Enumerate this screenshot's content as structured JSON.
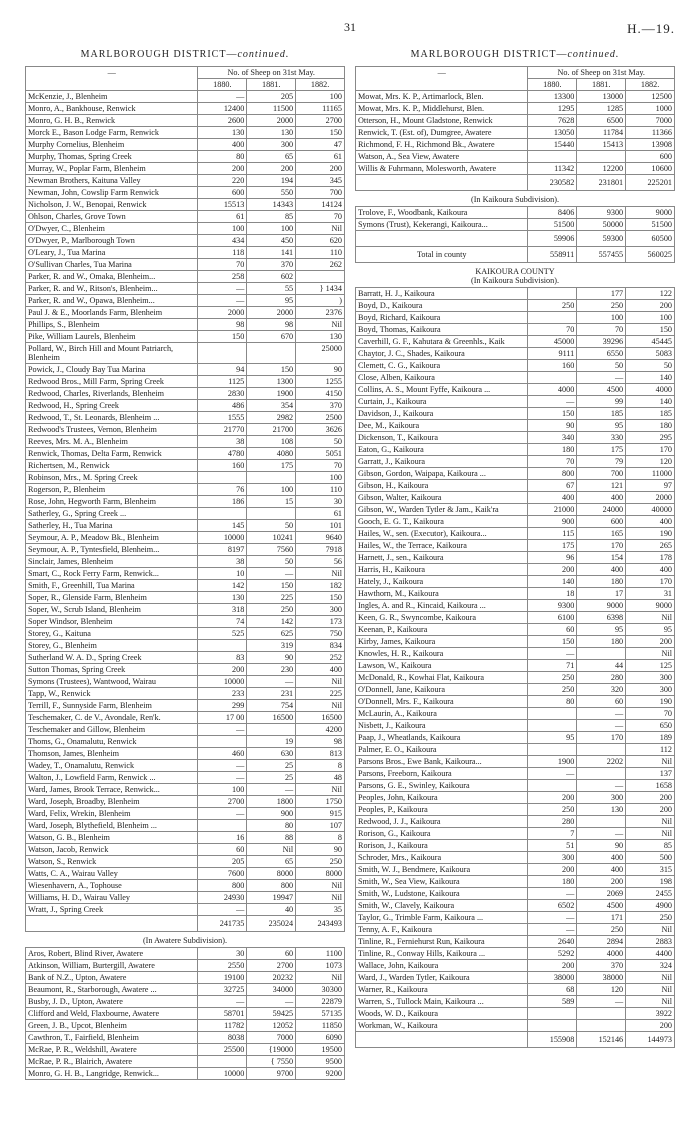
{
  "page_number": "31",
  "page_ref": "H.—19.",
  "district_title_main": "MARLBOROUGH DISTRICT—",
  "district_title_suffix": "continued.",
  "header": {
    "sheep_count": "No. of Sheep on 31st May.",
    "dash": "—",
    "years": [
      "1880.",
      "1881.",
      "1882."
    ]
  },
  "left": [
    {
      "n": "McKenzie, J., Blenheim",
      "a": "—",
      "b": "205",
      "c": "100"
    },
    {
      "n": "Monro, A., Bankhouse, Renwick",
      "a": "12400",
      "b": "11500",
      "c": "11165"
    },
    {
      "n": "Monro, G. H. B., Renwick",
      "a": "2600",
      "b": "2000",
      "c": "2700"
    },
    {
      "n": "Morck E., Bason Lodge Farm, Renwick",
      "a": "130",
      "b": "130",
      "c": "150"
    },
    {
      "n": "Murphy Cornelius, Blenheim",
      "a": "400",
      "b": "300",
      "c": "47"
    },
    {
      "n": "Murphy, Thomas, Spring Creek",
      "a": "80",
      "b": "65",
      "c": "61"
    },
    {
      "n": "Murray, W., Poplar Farm, Blenheim",
      "a": "200",
      "b": "200",
      "c": "200"
    },
    {
      "n": "Newman Brothers, Kaituna Valley",
      "a": "220",
      "b": "194",
      "c": "345"
    },
    {
      "n": "Newman, John, Cowslip Farm Renwick",
      "a": "600",
      "b": "550",
      "c": "700"
    },
    {
      "n": "Nicholson, J. W., Benopai, Renwick",
      "a": "15513",
      "b": "14343",
      "c": "14124"
    },
    {
      "n": "Ohlson, Charles, Grove Town",
      "a": "61",
      "b": "85",
      "c": "70"
    },
    {
      "n": "O'Dwyer, C., Blenheim",
      "a": "100",
      "b": "100",
      "c": "Nil"
    },
    {
      "n": "O'Dwyer, P., Marlborough Town",
      "a": "434",
      "b": "450",
      "c": "620"
    },
    {
      "n": "O'Leary, J., Tua Marina",
      "a": "118",
      "b": "141",
      "c": "110"
    },
    {
      "n": "O'Sullivan Charles, Tua Marina",
      "a": "70",
      "b": "370",
      "c": "262"
    },
    {
      "n": "Parker, R. and W., Omaka, Blenheim...",
      "a": "258",
      "b": "602",
      "c": ""
    },
    {
      "n": "Parker, R. and W., Ritson's, Blenheim...",
      "a": "—",
      "b": "55",
      "c": "} 1434"
    },
    {
      "n": "Parker, R. and W., Opawa, Blenheim...",
      "a": "—",
      "b": "95",
      "c": ")"
    },
    {
      "n": "Paul J. & E., Moorlands Farm, Blenheim",
      "a": "2000",
      "b": "2000",
      "c": "2376"
    },
    {
      "n": "Phillips, S., Blenheim",
      "a": "98",
      "b": "98",
      "c": "Nil"
    },
    {
      "n": "Pike, William Laurels, Blenheim",
      "a": "150",
      "b": "670",
      "c": "130"
    },
    {
      "n": "Pollard, W., Birch Hill and Mount Patriarch, Blenheim",
      "a": "",
      "b": "",
      "c": "25000"
    },
    {
      "n": "Powick, J., Cloudy Bay Tua Marina",
      "a": "94",
      "b": "150",
      "c": "90"
    },
    {
      "n": "Redwood Bros., Mill Farm, Spring Creek",
      "a": "1125",
      "b": "1300",
      "c": "1255"
    },
    {
      "n": "Redwood, Charles, Riverlands, Blenheim",
      "a": "2830",
      "b": "1900",
      "c": "4150"
    },
    {
      "n": "Redwood, H., Spring Creek",
      "a": "486",
      "b": "354",
      "c": "370"
    },
    {
      "n": "Redwood, T., St. Leonards, Blenheim ...",
      "a": "1555",
      "b": "2982",
      "c": "2500"
    },
    {
      "n": "Redwood's Trustees, Vernon, Blenheim",
      "a": "21770",
      "b": "21700",
      "c": "3626"
    },
    {
      "n": "Reeves, Mrs. M. A., Blenheim",
      "a": "38",
      "b": "108",
      "c": "50"
    },
    {
      "n": "Renwick, Thomas, Delta Farm, Renwick",
      "a": "4780",
      "b": "4080",
      "c": "5051"
    },
    {
      "n": "Richertsen, M., Renwick",
      "a": "160",
      "b": "175",
      "c": "70"
    },
    {
      "n": "Robinson, Mrs., M. Spring Creek",
      "a": "",
      "b": "",
      "c": "100"
    },
    {
      "n": "Rogerson, P., Blenheim",
      "a": "76",
      "b": "100",
      "c": "110"
    },
    {
      "n": "Rose, John, Hegworth Farm, Blenheim",
      "a": "186",
      "b": "15",
      "c": "30"
    },
    {
      "n": "Satherley, G., Spring Creek ...",
      "a": "",
      "b": "",
      "c": "61"
    },
    {
      "n": "Satherley, H., Tua Marina",
      "a": "145",
      "b": "50",
      "c": "101"
    },
    {
      "n": "Seymour, A. P., Meadow Bk., Blenheim",
      "a": "10000",
      "b": "10241",
      "c": "9640"
    },
    {
      "n": "Seymour, A. P., Tyntesfield, Blenheim...",
      "a": "8197",
      "b": "7560",
      "c": "7918"
    },
    {
      "n": "Sinclair, James, Blenheim",
      "a": "38",
      "b": "50",
      "c": "56"
    },
    {
      "n": "Smart, C., Rock Ferry Farm, Renwick...",
      "a": "10",
      "b": "—",
      "c": "Nil"
    },
    {
      "n": "Smith, F., Greenhill, Tua Marina",
      "a": "142",
      "b": "150",
      "c": "182"
    },
    {
      "n": "Soper, R., Glenside Farm, Blenheim",
      "a": "130",
      "b": "225",
      "c": "150"
    },
    {
      "n": "Soper, W., Scrub Island, Blenheim",
      "a": "318",
      "b": "250",
      "c": "300"
    },
    {
      "n": "Soper Windsor, Blenheim",
      "a": "74",
      "b": "142",
      "c": "173"
    },
    {
      "n": "Storey, G., Kaituna",
      "a": "525",
      "b": "625",
      "c": "750"
    },
    {
      "n": "Storey, G., Blenheim",
      "a": "",
      "b": "319",
      "c": "834"
    },
    {
      "n": "Sutherland W. A. D., Spring Creek",
      "a": "83",
      "b": "90",
      "c": "252"
    },
    {
      "n": "Sutton Thomas, Spring Creek",
      "a": "200",
      "b": "230",
      "c": "400"
    },
    {
      "n": "Symons (Trustees), Wantwood, Wairau",
      "a": "10000",
      "b": "—",
      "c": "Nil"
    },
    {
      "n": "Tapp, W., Renwick",
      "a": "233",
      "b": "231",
      "c": "225"
    },
    {
      "n": "Terrill, F., Sunnyside Farm, Blenheim",
      "a": "299",
      "b": "754",
      "c": "Nil"
    },
    {
      "n": "Teschemaker, C. de V., Avondale, Ren'k.",
      "a": "17 00",
      "b": "16500",
      "c": "16500"
    },
    {
      "n": "Teschemaker and Gillow, Blenheim",
      "a": "—",
      "b": "",
      "c": "4200"
    },
    {
      "n": "Thoms, G., Onamalutu, Renwick",
      "a": "",
      "b": "19",
      "c": "98"
    },
    {
      "n": "Thomson, James, Blenheim",
      "a": "460",
      "b": "630",
      "c": "813"
    },
    {
      "n": "Wadey, T., Onamalutu, Renwick",
      "a": "—",
      "b": "25",
      "c": "8"
    },
    {
      "n": "Walton, J., Lowfield Farm, Renwick ...",
      "a": "—",
      "b": "25",
      "c": "48"
    },
    {
      "n": "Ward, James, Brook Terrace, Renwick...",
      "a": "100",
      "b": "—",
      "c": "Nil"
    },
    {
      "n": "Ward, Joseph, Broadby, Blenheim",
      "a": "2700",
      "b": "1800",
      "c": "1750"
    },
    {
      "n": "Ward, Felix, Wrekin, Blenheim",
      "a": "—",
      "b": "900",
      "c": "915"
    },
    {
      "n": "Ward, Joseph, Blythefield, Blenheim ...",
      "a": "",
      "b": "80",
      "c": "107"
    },
    {
      "n": "Watson, G. B., Blenheim",
      "a": "16",
      "b": "88",
      "c": "8"
    },
    {
      "n": "Watson, Jacob, Renwick",
      "a": "60",
      "b": "Nil",
      "c": "90"
    },
    {
      "n": "Watson, S., Renwick",
      "a": "205",
      "b": "65",
      "c": "250"
    },
    {
      "n": "Watts, C. A., Wairau Valley",
      "a": "7600",
      "b": "8000",
      "c": "8000"
    },
    {
      "n": "Wiesenhavern, A., Tophouse",
      "a": "800",
      "b": "800",
      "c": "Nil"
    },
    {
      "n": "Williams, H. D., Wairau Valley",
      "a": "24930",
      "b": "19947",
      "c": "Nil"
    },
    {
      "n": "Wratt, J., Spring Creek",
      "a": "—",
      "b": "40",
      "c": "35"
    },
    {
      "n": "",
      "a": "241735",
      "b": "235024",
      "c": "243493",
      "total": true
    }
  ],
  "awatere_title": "(In Awatere Subdivision).",
  "awatere": [
    {
      "n": "Aros, Robert, Blind River, Awatere",
      "a": "30",
      "b": "60",
      "c": "1100"
    },
    {
      "n": "Atkinson, William, Burtergill, Awatere",
      "a": "2550",
      "b": "2700",
      "c": "1073"
    },
    {
      "n": "Bank of N.Z., Upton, Awatere",
      "a": "19100",
      "b": "20232",
      "c": "Nil"
    },
    {
      "n": "Beaumont, R., Starborough, Awatere ...",
      "a": "32725",
      "b": "34000",
      "c": "30300"
    },
    {
      "n": "Busby, J. D., Upton, Awatere",
      "a": "—",
      "b": "—",
      "c": "22879"
    },
    {
      "n": "Clifford and Weld, Flaxbourne, Awatere",
      "a": "58701",
      "b": "59425",
      "c": "57135"
    },
    {
      "n": "Green, J. B., Upcot, Blenheim",
      "a": "11782",
      "b": "12052",
      "c": "11850"
    },
    {
      "n": "Cawthron, T., Fairfield, Blenheim",
      "a": "8038",
      "b": "7000",
      "c": "6090"
    },
    {
      "n": "McRae, P. R., Weldshill, Awatere",
      "a": "25500",
      "b": "{19000",
      "c": "19500"
    },
    {
      "n": "McRae, P. R., Blairich, Awatere",
      "a": "",
      "b": "{ 7550",
      "c": "9500"
    },
    {
      "n": "Monro, G. H. B., Langridge, Renwick...",
      "a": "10000",
      "b": "9700",
      "c": "9200"
    }
  ],
  "right_top": [
    {
      "n": "Mowat, Mrs. K. P., Artimarlock, Blen.",
      "a": "13300",
      "b": "13000",
      "c": "12500"
    },
    {
      "n": "Mowat, Mrs. K. P., Middlehurst, Blen.",
      "a": "1295",
      "b": "1285",
      "c": "1000"
    },
    {
      "n": "Otterson, H., Mount Gladstone, Renwick",
      "a": "7628",
      "b": "6500",
      "c": "7000"
    },
    {
      "n": "Renwick, T. (Est. of), Dumgree, Awatere",
      "a": "13050",
      "b": "11784",
      "c": "11366"
    },
    {
      "n": "Richmond, F. H., Richmond Bk., Awatere",
      "a": "15440",
      "b": "15413",
      "c": "13908"
    },
    {
      "n": "Watson, A., Sea View, Awatere",
      "a": "",
      "b": "",
      "c": "600"
    },
    {
      "n": "Willis & Fuhrmann, Molesworth, Awatere",
      "a": "11342",
      "b": "12200",
      "c": "10600"
    },
    {
      "n": "",
      "a": "230582",
      "b": "231801",
      "c": "225201",
      "total": true
    }
  ],
  "kaikoura_sub_title": "(In Kaikoura Subdivision).",
  "kaikoura_sub": [
    {
      "n": "Trolove, F., Woodbank, Kaikoura",
      "a": "8406",
      "b": "9300",
      "c": "9000"
    },
    {
      "n": "Symons (Trust), Kekerangi, Kaikoura...",
      "a": "51500",
      "b": "50000",
      "c": "51500"
    },
    {
      "n": "",
      "a": "59906",
      "b": "59300",
      "c": "60500",
      "total": true
    }
  ],
  "county_total": {
    "label": "Total in county",
    "a": "558911",
    "b": "557455",
    "c": "560025"
  },
  "kaikoura_county_title": "KAIKOURA COUNTY",
  "kaikoura_county_sub": "(In Kaikoura Subdivision).",
  "kaikoura": [
    {
      "n": "Barratt, H. J., Kaikoura",
      "a": "",
      "b": "177",
      "c": "122"
    },
    {
      "n": "Boyd, D., Kaikoura",
      "a": "250",
      "b": "250",
      "c": "200"
    },
    {
      "n": "Boyd, Richard, Kaikoura",
      "a": "",
      "b": "100",
      "c": "100"
    },
    {
      "n": "Boyd, Thomas, Kaikoura",
      "a": "70",
      "b": "70",
      "c": "150"
    },
    {
      "n": "Caverhill, G. F., Kahutara & Greenhls., Kaik",
      "a": "45000",
      "b": "39296",
      "c": "45445"
    },
    {
      "n": "Chaytor, J. C., Shades, Kaikoura",
      "a": "9111",
      "b": "6550",
      "c": "5083"
    },
    {
      "n": "Clemett, C. G., Kaikoura",
      "a": "160",
      "b": "50",
      "c": "50"
    },
    {
      "n": "Close, Alben, Kaikoura",
      "a": "",
      "b": "—",
      "c": "140"
    },
    {
      "n": "Collins, A. S., Mount Fyffe, Kaikoura ...",
      "a": "4000",
      "b": "4500",
      "c": "4000"
    },
    {
      "n": "Curtain, J., Kaikoura",
      "a": "—",
      "b": "99",
      "c": "140"
    },
    {
      "n": "Davidson, J., Kaikoura",
      "a": "150",
      "b": "185",
      "c": "185"
    },
    {
      "n": "Dee, M., Kaikoura",
      "a": "90",
      "b": "95",
      "c": "180"
    },
    {
      "n": "Dickenson, T., Kaikoura",
      "a": "340",
      "b": "330",
      "c": "295"
    },
    {
      "n": "Eaton, G., Kaikoura",
      "a": "180",
      "b": "175",
      "c": "170"
    },
    {
      "n": "Garratt, J., Kaikoura",
      "a": "70",
      "b": "79",
      "c": "120"
    },
    {
      "n": "Gibson, Gordon, Waipapa, Kaikoura ...",
      "a": "800",
      "b": "700",
      "c": "11000"
    },
    {
      "n": "Gibson, H., Kaikoura",
      "a": "67",
      "b": "121",
      "c": "97"
    },
    {
      "n": "Gibson, Walter, Kaikoura",
      "a": "400",
      "b": "400",
      "c": "2000"
    },
    {
      "n": "Gibson, W., Warden Tytler & Jam., Kaik'ra",
      "a": "21000",
      "b": "24000",
      "c": "40000"
    },
    {
      "n": "Gooch, E. G. T., Kaikoura",
      "a": "900",
      "b": "600",
      "c": "400"
    },
    {
      "n": "Hailes, W., sen. (Executor), Kaikoura...",
      "a": "115",
      "b": "165",
      "c": "190"
    },
    {
      "n": "Hailes, W., the Terrace, Kaikoura",
      "a": "175",
      "b": "170",
      "c": "265"
    },
    {
      "n": "Harnett, J., sen., Kaikoura",
      "a": "96",
      "b": "154",
      "c": "178"
    },
    {
      "n": "Harris, H., Kaikoura",
      "a": "200",
      "b": "400",
      "c": "400"
    },
    {
      "n": "Hately, J., Kaikoura",
      "a": "140",
      "b": "180",
      "c": "170"
    },
    {
      "n": "Hawthorn, M., Kaikoura",
      "a": "18",
      "b": "17",
      "c": "31"
    },
    {
      "n": "Ingles, A. and R., Kincaid, Kaikoura ...",
      "a": "9300",
      "b": "9000",
      "c": "9000"
    },
    {
      "n": "Keen, G. R., Swyncombe, Kaikoura",
      "a": "6100",
      "b": "6398",
      "c": "Nil"
    },
    {
      "n": "Keenan, P., Kaikoura",
      "a": "60",
      "b": "95",
      "c": "95"
    },
    {
      "n": "Kirby, James, Kaikoura",
      "a": "150",
      "b": "180",
      "c": "200"
    },
    {
      "n": "Knowles, H. R., Kaikoura",
      "a": "—",
      "b": "",
      "c": "Nil"
    },
    {
      "n": "Lawson, W., Kaikoura",
      "a": "71",
      "b": "44",
      "c": "125"
    },
    {
      "n": "McDonald, R., Kowhai Flat, Kaikoura",
      "a": "250",
      "b": "280",
      "c": "300"
    },
    {
      "n": "O'Donnell, Jane, Kaikoura",
      "a": "250",
      "b": "320",
      "c": "300"
    },
    {
      "n": "O'Donnell, Mrs. F., Kaikoura",
      "a": "80",
      "b": "60",
      "c": "190"
    },
    {
      "n": "McLaurin, A., Kaikoura",
      "a": "",
      "b": "—",
      "c": "70"
    },
    {
      "n": "Nisbett, J., Kaikoura",
      "a": "",
      "b": "—",
      "c": "650"
    },
    {
      "n": "Paap, J., Wheatlands, Kaikoura",
      "a": "95",
      "b": "170",
      "c": "189"
    },
    {
      "n": "Palmer, E. O., Kaikoura",
      "a": "",
      "b": "",
      "c": "112"
    },
    {
      "n": "Parsons Bros., Ewe Bank, Kaikoura...",
      "a": "1900",
      "b": "2202",
      "c": "Nil"
    },
    {
      "n": "Parsons, Freeborn, Kaikoura",
      "a": "—",
      "b": "",
      "c": "137"
    },
    {
      "n": "Parsons, G. E., Swinley, Kaikoura",
      "a": "",
      "b": "—",
      "c": "1658"
    },
    {
      "n": "Peoples, John, Kaikoura",
      "a": "200",
      "b": "300",
      "c": "200"
    },
    {
      "n": "Peoples, P., Kaikoura",
      "a": "250",
      "b": "130",
      "c": "200"
    },
    {
      "n": "Redwood, J. J., Kaikoura",
      "a": "280",
      "b": "",
      "c": "Nil"
    },
    {
      "n": "Rorison, G., Kaikoura",
      "a": "7",
      "b": "—",
      "c": "Nil"
    },
    {
      "n": "Rorison, J., Kaikoura",
      "a": "51",
      "b": "90",
      "c": "85"
    },
    {
      "n": "Schroder, Mrs., Kaikoura",
      "a": "300",
      "b": "400",
      "c": "500"
    },
    {
      "n": "Smith, W. J., Bendmere, Kaikoura",
      "a": "200",
      "b": "400",
      "c": "315"
    },
    {
      "n": "Smith, W., Sea View, Kaikoura",
      "a": "180",
      "b": "200",
      "c": "198"
    },
    {
      "n": "Smith, W., Ludstone, Kaikoura",
      "a": "—",
      "b": "2069",
      "c": "2455"
    },
    {
      "n": "Smith, W., Clavely, Kaikoura",
      "a": "6502",
      "b": "4500",
      "c": "4900"
    },
    {
      "n": "Taylor, G., Trimble Farm, Kaikoura ...",
      "a": "—",
      "b": "171",
      "c": "250"
    },
    {
      "n": "Tenny, A. F., Kaikoura",
      "a": "—",
      "b": "250",
      "c": "Nil"
    },
    {
      "n": "Tinline, R., Ferniehurst Run, Kaikoura",
      "a": "2640",
      "b": "2894",
      "c": "2883"
    },
    {
      "n": "Tinline, R., Conway Hills, Kaikoura ...",
      "a": "5292",
      "b": "4000",
      "c": "4400"
    },
    {
      "n": "Wallace, John, Kaikoura",
      "a": "200",
      "b": "370",
      "c": "324"
    },
    {
      "n": "Ward, J., Warden Tytler, Kaikoura",
      "a": "38000",
      "b": "38000",
      "c": "Nil"
    },
    {
      "n": "Warner, R., Kaikoura",
      "a": "68",
      "b": "120",
      "c": "Nil"
    },
    {
      "n": "Warren, S., Tullock Main, Kaikoura ...",
      "a": "589",
      "b": "—",
      "c": "Nil"
    },
    {
      "n": "Woods, W. D., Kaikoura",
      "a": "",
      "b": "",
      "c": "3922"
    },
    {
      "n": "Workman, W., Kaikoura",
      "a": "",
      "b": "",
      "c": "200"
    },
    {
      "n": "",
      "a": "155908",
      "b": "152146",
      "c": "144973",
      "total": true
    }
  ]
}
